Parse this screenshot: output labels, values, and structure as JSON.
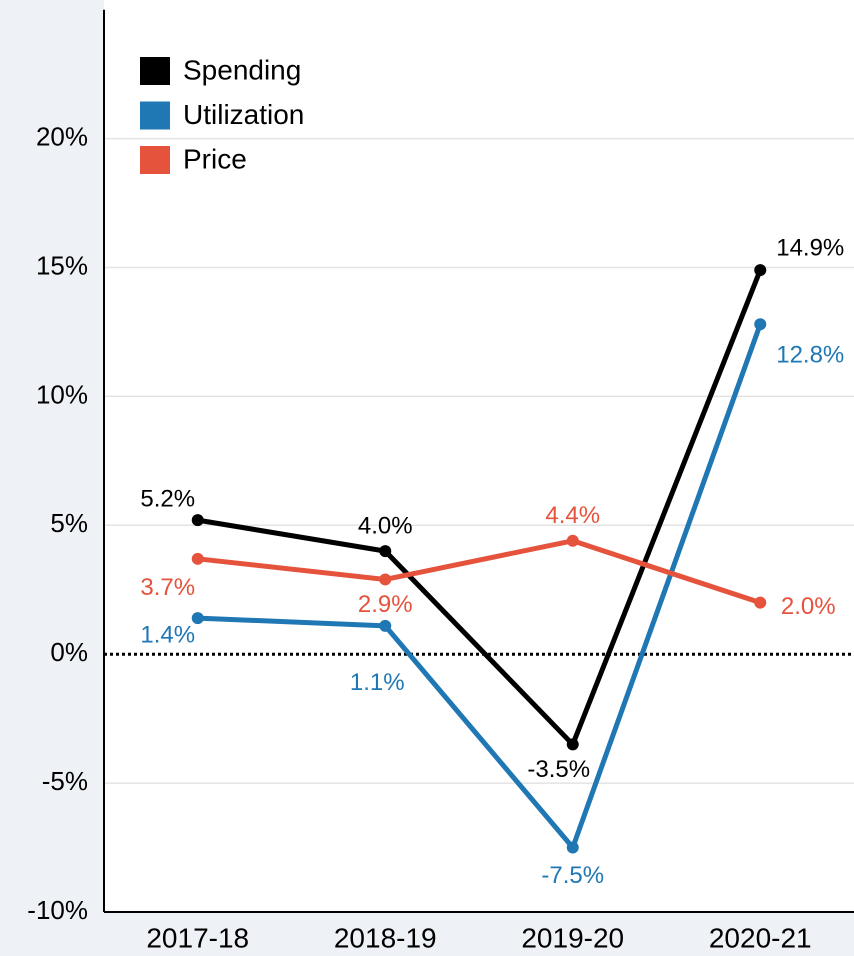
{
  "chart_data": {
    "type": "line",
    "categories": [
      "2017-18",
      "2018-19",
      "2019-20",
      "2020-21"
    ],
    "series": [
      {
        "name": "Spending",
        "color": "#000000",
        "values": [
          5.2,
          4.0,
          -3.5,
          14.9
        ],
        "value_labels": [
          "5.2%",
          "4.0%",
          "-3.5%",
          "14.9%"
        ]
      },
      {
        "name": "Utilization",
        "color": "#1f77b4",
        "values": [
          1.4,
          1.1,
          -7.5,
          12.8
        ],
        "value_labels": [
          "1.4%",
          "1.1%",
          "-7.5%",
          "12.8%"
        ]
      },
      {
        "name": "Price",
        "color": "#e5533c",
        "values": [
          3.7,
          2.9,
          4.4,
          2.0
        ],
        "value_labels": [
          "3.7%",
          "2.9%",
          "4.4%",
          "2.0%"
        ]
      }
    ],
    "ylim": [
      -10,
      25
    ],
    "yticks": [
      {
        "value": -10,
        "label": "-10%"
      },
      {
        "value": -5,
        "label": "-5%"
      },
      {
        "value": 0,
        "label": "0%"
      },
      {
        "value": 5,
        "label": "5%"
      },
      {
        "value": 10,
        "label": "10%"
      },
      {
        "value": 15,
        "label": "15%"
      },
      {
        "value": 20,
        "label": "20%"
      }
    ],
    "grid": true,
    "legend": "upper left"
  }
}
